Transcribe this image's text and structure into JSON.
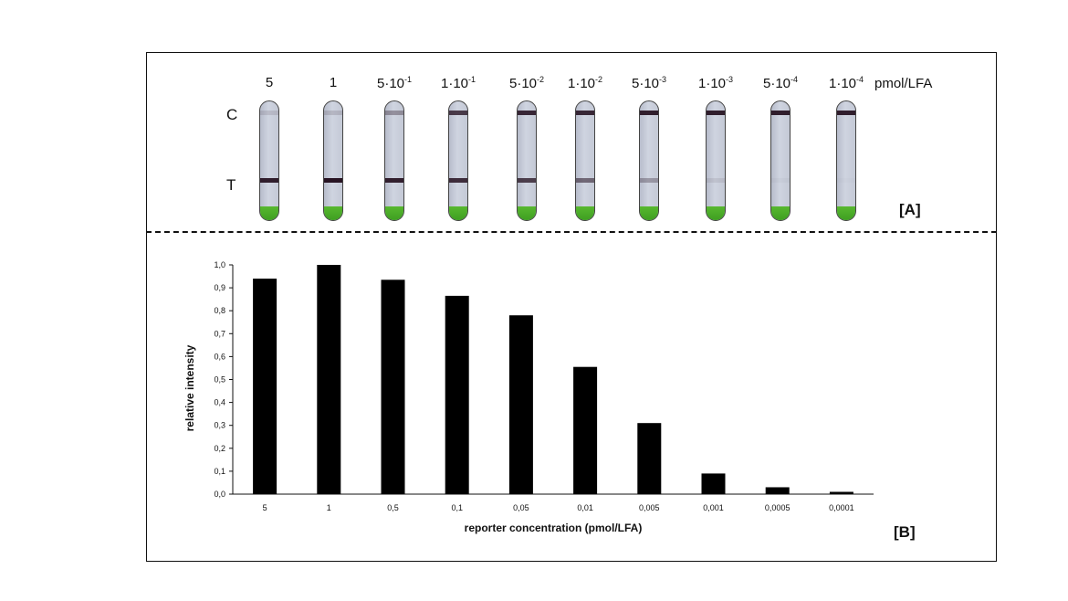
{
  "panel_a": {
    "tag": "[A]",
    "unit": "pmol/LFA",
    "control_label": "C",
    "test_label": "T",
    "strips": [
      {
        "base": "5",
        "exp": "",
        "control": 0.12,
        "test": 0.95
      },
      {
        "base": "1",
        "exp": "",
        "control": 0.15,
        "test": 1.0
      },
      {
        "base": "5·10",
        "exp": "-1",
        "control": 0.35,
        "test": 0.94
      },
      {
        "base": "1·10",
        "exp": "-1",
        "control": 0.8,
        "test": 0.87
      },
      {
        "base": "5·10",
        "exp": "-2",
        "control": 0.9,
        "test": 0.78
      },
      {
        "base": "1·10",
        "exp": "-2",
        "control": 0.9,
        "test": 0.56
      },
      {
        "base": "5·10",
        "exp": "-3",
        "control": 0.95,
        "test": 0.31
      },
      {
        "base": "1·10",
        "exp": "-3",
        "control": 0.95,
        "test": 0.09
      },
      {
        "base": "5·10",
        "exp": "-4",
        "control": 0.95,
        "test": 0.03
      },
      {
        "base": "1·10",
        "exp": "-4",
        "control": 0.95,
        "test": 0.01
      }
    ]
  },
  "chart_data": {
    "type": "bar",
    "tag": "[B]",
    "categories": [
      "5",
      "1",
      "0,5",
      "0,1",
      "0,05",
      "0,01",
      "0,005",
      "0,001",
      "0,0005",
      "0,0001"
    ],
    "values": [
      0.94,
      1.0,
      0.935,
      0.865,
      0.78,
      0.555,
      0.31,
      0.09,
      0.03,
      0.01
    ],
    "xlabel": "reporter concentration (pmol/LFA)",
    "ylabel": "relative  intensity",
    "ylim": [
      0,
      1.0
    ],
    "yticks": [
      "0,0",
      "0,1",
      "0,2",
      "0,3",
      "0,4",
      "0,5",
      "0,6",
      "0,7",
      "0,8",
      "0,9",
      "1,0"
    ],
    "bar_color": "#000000",
    "grid": false,
    "legend": "none"
  }
}
